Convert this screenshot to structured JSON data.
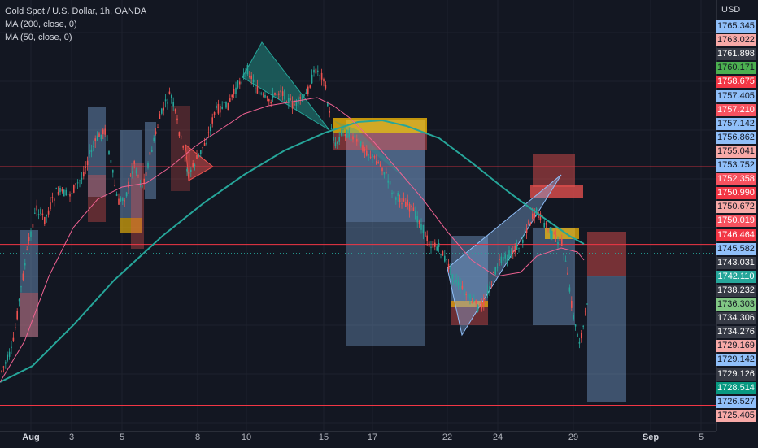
{
  "legend": {
    "symbol": "Gold Spot / U.S. Dollar, 1h, OANDA",
    "ma200": "MA (200, close, 0)",
    "ma50": "MA (50, close, 0)"
  },
  "price_axis": {
    "currency": "USD",
    "labels": [
      {
        "text": "1765.345",
        "color": "#90bff9"
      },
      {
        "text": "1763.022",
        "color": "#f7a9a7"
      },
      {
        "text": "1761.898",
        "color": "#363a45",
        "fg": "#ffffff"
      },
      {
        "text": "1760.171",
        "color": "#4caf50"
      },
      {
        "text": "1758.675",
        "color": "#f23645",
        "fg": "#ffffff"
      },
      {
        "text": "1757.405",
        "color": "#90bff9"
      },
      {
        "text": "1757.210",
        "color": "#f7525f",
        "fg": "#ffffff"
      },
      {
        "text": "1757.142",
        "color": "#90bff9"
      },
      {
        "text": "1756.862",
        "color": "#90bff9"
      },
      {
        "text": "1755.041",
        "color": "#f7a9a7"
      },
      {
        "text": "1753.752",
        "color": "#90bff9"
      },
      {
        "text": "1752.358",
        "color": "#f7525f",
        "fg": "#ffffff"
      },
      {
        "text": "1750.990",
        "color": "#f23645",
        "fg": "#ffffff"
      },
      {
        "text": "1750.672",
        "color": "#f7a9a7"
      },
      {
        "text": "1750.019",
        "color": "#f7525f",
        "fg": "#ffffff"
      },
      {
        "text": "1746.464",
        "color": "#f23645",
        "fg": "#ffffff"
      },
      {
        "text": "1745.582",
        "color": "#90bff9"
      },
      {
        "text": "1743.031",
        "color": "#363a45",
        "fg": "#ffffff"
      },
      {
        "text": "1742.110",
        "color": "#26a69a",
        "fg": "#ffffff"
      },
      {
        "text": "1738.232",
        "color": "#363a45",
        "fg": "#ffffff"
      },
      {
        "text": "1736.303",
        "color": "#81c784"
      },
      {
        "text": "1734.306",
        "color": "#363a45",
        "fg": "#ffffff"
      },
      {
        "text": "1734.276",
        "color": "#363a45",
        "fg": "#ffffff"
      },
      {
        "text": "1729.169",
        "color": "#f7a9a7"
      },
      {
        "text": "1729.142",
        "color": "#90bff9"
      },
      {
        "text": "1729.126",
        "color": "#363a45",
        "fg": "#ffffff"
      },
      {
        "text": "1728.514",
        "color": "#089981",
        "fg": "#ffffff"
      },
      {
        "text": "1726.527",
        "color": "#90bff9"
      },
      {
        "text": "1725.405",
        "color": "#f7a9a7"
      }
    ]
  },
  "time_axis": {
    "labels": [
      {
        "text": "Aug",
        "bold": true
      },
      {
        "text": "3"
      },
      {
        "text": "5"
      },
      {
        "text": "8"
      },
      {
        "text": "10"
      },
      {
        "text": "15"
      },
      {
        "text": "17"
      },
      {
        "text": "22"
      },
      {
        "text": "24"
      },
      {
        "text": "29"
      },
      {
        "text": "Sep",
        "bold": true
      },
      {
        "text": "5"
      }
    ]
  },
  "colors": {
    "background": "#131722",
    "ma200": "#26a69a",
    "ma50": "#f06292",
    "up": "#26a69a",
    "down": "#ef5350",
    "hline": "#f23645"
  },
  "horizontal_lines": [
    1750.99,
    1743.031,
    1726.527
  ],
  "last_price": 1742.11
}
